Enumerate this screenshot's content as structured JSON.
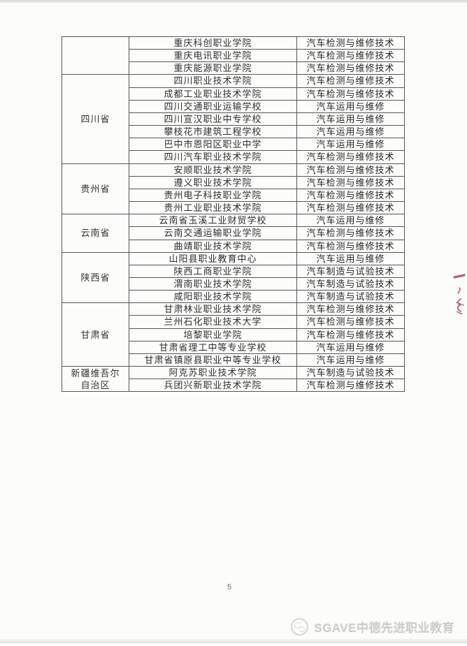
{
  "page": {
    "number": "5",
    "background_color": "#fcfcfb",
    "border_color": "#565656"
  },
  "watermark": {
    "brand_text": "SGAVE中德先进职业教育",
    "logo_icon": "sgave-circle-logo-icon",
    "text_color": "#ccccca"
  },
  "annotation": {
    "type": "red-pen-marks",
    "color": "#a63a48"
  },
  "table": {
    "columns": [
      "province",
      "school",
      "program"
    ],
    "sections": [
      {
        "province": "",
        "rows": [
          {
            "school": "重庆科创职业学院",
            "program": "汽车检测与维修技术"
          },
          {
            "school": "重庆电讯职业学院",
            "program": "汽车检测与维修技术"
          },
          {
            "school": "重庆能源职业学院",
            "program": "汽车检测与维修技术"
          }
        ]
      },
      {
        "province": "四川省",
        "rows": [
          {
            "school": "四川职业技术学院",
            "program": "汽车检测与维修技术"
          },
          {
            "school": "成都工业职业技术学院",
            "program": "汽车检测与维修技术"
          },
          {
            "school": "四川交通职业运输学校",
            "program": "汽车运用与维修"
          },
          {
            "school": "四川宣汉职业中专学校",
            "program": "汽车运用与维修"
          },
          {
            "school": "攀枝花市建筑工程学校",
            "program": "汽车运用与维修"
          },
          {
            "school": "巴中市恩阳区职业中学",
            "program": "汽车运用与维修"
          },
          {
            "school": "四川汽车职业技术学院",
            "program": "汽车检测与维修技术"
          }
        ]
      },
      {
        "province": "贵州省",
        "rows": [
          {
            "school": "安顺职业技术学院",
            "program": "汽车检测与维修技术"
          },
          {
            "school": "遵义职业技术学院",
            "program": "汽车检测与维修技术"
          },
          {
            "school": "贵州电子科技职业学院",
            "program": "汽车检测与维修技术"
          },
          {
            "school": "贵州工业职业技术学院",
            "program": "汽车检测与维修技术"
          }
        ]
      },
      {
        "province": "云南省",
        "rows": [
          {
            "school": "云南省玉溪工业财贸学校",
            "program": "汽车运用与维修"
          },
          {
            "school": "云南交通运输职业学院",
            "program": "汽车检测与维修技术"
          },
          {
            "school": "曲靖职业技术学院",
            "program": "汽车检测与维修技术"
          }
        ]
      },
      {
        "province": "陕西省",
        "rows": [
          {
            "school": "山阳县职业教育中心",
            "program": "汽车运用与维修"
          },
          {
            "school": "陕西工商职业学院",
            "program": "汽车制造与试验技术"
          },
          {
            "school": "渭南职业技术学院",
            "program": "汽车制造与试验技术"
          },
          {
            "school": "咸阳职业技术学院",
            "program": "汽车制造与试验技术"
          }
        ]
      },
      {
        "province": "甘肃省",
        "rows": [
          {
            "school": "甘肃林业职业技术学院",
            "program": "汽车检测与维修技术"
          },
          {
            "school": "兰州石化职业技术大学",
            "program": "汽车检测与维修技术"
          },
          {
            "school": "培黎职业学院",
            "program": "汽车检测与维修技术"
          },
          {
            "school": "甘肃省理工中等专业学校",
            "program": "汽车运用与维修"
          },
          {
            "school": "甘肃省镇原县职业中等专业学校",
            "program": "汽车运用与维修"
          }
        ]
      },
      {
        "province": "新疆维吾尔\n自治区",
        "rows": [
          {
            "school": "阿克苏职业技术学院",
            "program": "汽车制造与试验技术"
          },
          {
            "school": "兵团兴新职业技术学院",
            "program": "汽车检测与维修技术"
          }
        ]
      }
    ]
  }
}
